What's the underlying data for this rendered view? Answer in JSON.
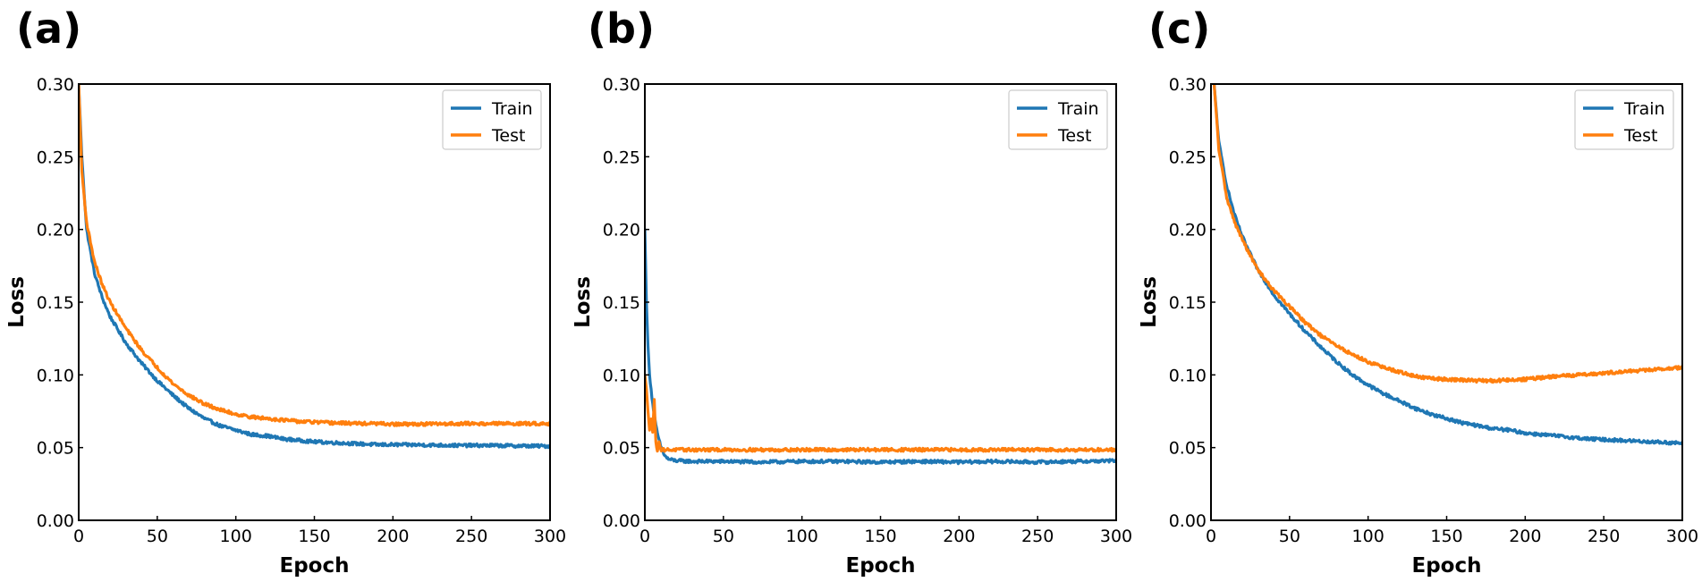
{
  "chart_data": [
    {
      "type": "line",
      "panel_label": "(a)",
      "xlabel": "Epoch",
      "ylabel": "Loss",
      "xlim": [
        0,
        300
      ],
      "ylim": [
        0,
        0.3
      ],
      "xticks": [
        "0",
        "50",
        "100",
        "150",
        "200",
        "250",
        "300"
      ],
      "yticks": [
        "0.00",
        "0.05",
        "0.10",
        "0.15",
        "0.20",
        "0.25",
        "0.30"
      ],
      "legend_position": "top-right",
      "grid": false,
      "series": [
        {
          "name": "Train",
          "color": "#1f77b4",
          "x": [
            0,
            2,
            5,
            10,
            15,
            20,
            30,
            40,
            50,
            60,
            70,
            80,
            90,
            100,
            110,
            120,
            130,
            140,
            150,
            160,
            170,
            180,
            190,
            200,
            220,
            240,
            260,
            280,
            300
          ],
          "y": [
            0.3,
            0.25,
            0.2,
            0.17,
            0.153,
            0.14,
            0.122,
            0.108,
            0.096,
            0.086,
            0.077,
            0.07,
            0.065,
            0.062,
            0.059,
            0.058,
            0.056,
            0.055,
            0.054,
            0.0535,
            0.053,
            0.0525,
            0.052,
            0.052,
            0.0518,
            0.0515,
            0.0515,
            0.0512,
            0.051
          ]
        },
        {
          "name": "Test",
          "color": "#ff7f0e",
          "x": [
            0,
            2,
            5,
            10,
            15,
            20,
            30,
            40,
            50,
            60,
            70,
            80,
            90,
            100,
            110,
            120,
            130,
            140,
            150,
            160,
            170,
            180,
            190,
            200,
            220,
            240,
            260,
            280,
            300
          ],
          "y": [
            0.3,
            0.24,
            0.205,
            0.178,
            0.162,
            0.15,
            0.132,
            0.117,
            0.105,
            0.094,
            0.086,
            0.08,
            0.076,
            0.073,
            0.071,
            0.07,
            0.069,
            0.068,
            0.0675,
            0.067,
            0.0668,
            0.0665,
            0.0665,
            0.066,
            0.0662,
            0.0665,
            0.0665,
            0.0665,
            0.0665
          ]
        }
      ]
    },
    {
      "type": "line",
      "panel_label": "(b)",
      "xlabel": "Epoch",
      "ylabel": "Loss",
      "xlim": [
        0,
        300
      ],
      "ylim": [
        0,
        0.3
      ],
      "xticks": [
        "0",
        "50",
        "100",
        "150",
        "200",
        "250",
        "300"
      ],
      "yticks": [
        "0.00",
        "0.05",
        "0.10",
        "0.15",
        "0.20",
        "0.25",
        "0.30"
      ],
      "legend_position": "top-right",
      "grid": false,
      "series": [
        {
          "name": "Train",
          "color": "#1f77b4",
          "x": [
            0,
            1,
            2,
            3,
            5,
            7,
            9,
            11,
            13,
            15,
            20,
            30,
            50,
            75,
            100,
            125,
            150,
            175,
            200,
            225,
            250,
            275,
            300
          ],
          "y": [
            0.2,
            0.15,
            0.12,
            0.1,
            0.08,
            0.065,
            0.055,
            0.048,
            0.044,
            0.042,
            0.041,
            0.0405,
            0.0405,
            0.04,
            0.0405,
            0.0405,
            0.04,
            0.0405,
            0.04,
            0.0405,
            0.04,
            0.0405,
            0.041
          ]
        },
        {
          "name": "Test",
          "color": "#ff7f0e",
          "x": [
            0,
            1,
            2,
            3,
            4,
            5,
            6,
            7,
            8,
            9,
            10,
            12,
            15,
            20,
            50,
            100,
            150,
            200,
            250,
            300
          ],
          "y": [
            0.1,
            0.09,
            0.075,
            0.062,
            0.07,
            0.06,
            0.084,
            0.053,
            0.048,
            0.055,
            0.0485,
            0.0485,
            0.0485,
            0.0485,
            0.0485,
            0.0485,
            0.0485,
            0.0485,
            0.0485,
            0.0485
          ]
        }
      ]
    },
    {
      "type": "line",
      "panel_label": "(c)",
      "xlabel": "Epoch",
      "ylabel": "Loss",
      "xlim": [
        0,
        300
      ],
      "ylim": [
        0,
        0.3
      ],
      "xticks": [
        "0",
        "50",
        "100",
        "150",
        "200",
        "250",
        "300"
      ],
      "yticks": [
        "0.00",
        "0.05",
        "0.10",
        "0.15",
        "0.20",
        "0.25",
        "0.30"
      ],
      "legend_position": "top-right",
      "grid": false,
      "series": [
        {
          "name": "Train",
          "color": "#1f77b4",
          "x": [
            2,
            5,
            10,
            15,
            20,
            25,
            30,
            40,
            50,
            60,
            70,
            80,
            90,
            100,
            110,
            120,
            130,
            140,
            150,
            160,
            170,
            180,
            190,
            200,
            220,
            240,
            260,
            280,
            300
          ],
          "y": [
            0.3,
            0.26,
            0.23,
            0.21,
            0.195,
            0.183,
            0.172,
            0.155,
            0.142,
            0.13,
            0.119,
            0.109,
            0.1,
            0.093,
            0.087,
            0.082,
            0.077,
            0.073,
            0.07,
            0.067,
            0.065,
            0.063,
            0.062,
            0.06,
            0.058,
            0.056,
            0.055,
            0.054,
            0.053
          ]
        },
        {
          "name": "Test",
          "color": "#ff7f0e",
          "x": [
            2,
            5,
            10,
            15,
            20,
            25,
            30,
            40,
            50,
            60,
            70,
            80,
            90,
            100,
            110,
            120,
            130,
            140,
            150,
            160,
            170,
            180,
            190,
            200,
            220,
            240,
            260,
            280,
            300
          ],
          "y": [
            0.3,
            0.255,
            0.222,
            0.205,
            0.193,
            0.182,
            0.172,
            0.158,
            0.147,
            0.136,
            0.127,
            0.12,
            0.114,
            0.109,
            0.105,
            0.102,
            0.099,
            0.0975,
            0.097,
            0.0965,
            0.096,
            0.096,
            0.0965,
            0.097,
            0.099,
            0.1005,
            0.102,
            0.1035,
            0.105
          ]
        }
      ]
    }
  ]
}
